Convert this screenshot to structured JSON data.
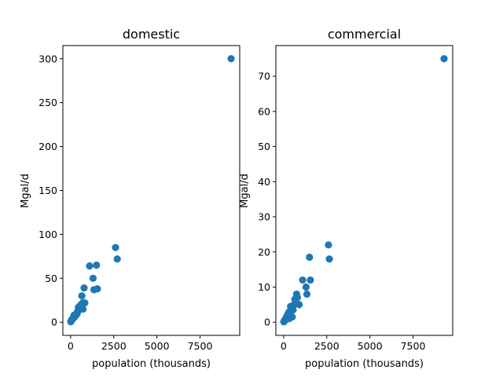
{
  "chart_data": [
    {
      "type": "scatter",
      "title": "domestic",
      "xlabel": "population (thousands)",
      "ylabel": "Mgal/d",
      "xlim": [
        -450,
        9800
      ],
      "ylim": [
        -15,
        315
      ],
      "xticks": [
        0,
        2500,
        5000,
        7500
      ],
      "xtick_labels": [
        "0",
        "2500",
        "5000",
        "7500"
      ],
      "yticks": [
        0,
        50,
        100,
        150,
        200,
        250,
        300
      ],
      "ytick_labels": [
        "0",
        "50",
        "100",
        "150",
        "200",
        "250",
        "300"
      ],
      "grid": false,
      "marker_color": "#1f77b4",
      "series": [
        {
          "x": [
            10,
            20,
            35,
            50,
            60,
            80,
            100,
            120,
            150,
            180,
            200,
            230,
            260,
            300,
            320,
            380,
            400,
            450,
            480,
            520,
            560,
            600,
            650,
            700,
            720,
            780,
            820,
            1100,
            1300,
            1350,
            1500,
            1550,
            2600,
            2700,
            9300
          ],
          "y": [
            0.5,
            1,
            1.5,
            2,
            2.5,
            3,
            3.5,
            4,
            5,
            5,
            8,
            6,
            7,
            9,
            8,
            10,
            12,
            17,
            14,
            18,
            16,
            20,
            30,
            22,
            15,
            39,
            22,
            64,
            50,
            37,
            65,
            38,
            85,
            72,
            300
          ]
        }
      ]
    },
    {
      "type": "scatter",
      "title": "commercial",
      "xlabel": "population (thousands)",
      "ylabel": "Mgal/d",
      "xlim": [
        -450,
        9800
      ],
      "ylim": [
        -3.75,
        78.75
      ],
      "xticks": [
        0,
        2500,
        5000,
        7500
      ],
      "xtick_labels": [
        "0",
        "2500",
        "5000",
        "7500"
      ],
      "yticks": [
        0,
        10,
        20,
        30,
        40,
        50,
        60,
        70
      ],
      "ytick_labels": [
        "0",
        "10",
        "20",
        "30",
        "40",
        "50",
        "60",
        "70"
      ],
      "grid": false,
      "marker_color": "#1f77b4",
      "series": [
        {
          "x": [
            10,
            20,
            35,
            50,
            60,
            80,
            100,
            120,
            150,
            180,
            200,
            230,
            260,
            300,
            320,
            350,
            380,
            400,
            450,
            500,
            550,
            600,
            650,
            700,
            750,
            800,
            900,
            1100,
            1300,
            1350,
            1500,
            1550,
            2600,
            2650,
            9300
          ],
          "y": [
            0.1,
            0.2,
            0.3,
            0.3,
            0.5,
            0.6,
            0.8,
            1,
            1.2,
            1.5,
            1.8,
            2,
            2.5,
            2.8,
            1,
            3,
            3.2,
            4.5,
            4,
            1.5,
            3.5,
            5,
            6.5,
            5.5,
            8,
            7,
            5,
            12,
            10,
            8,
            18.5,
            12,
            22,
            18,
            75
          ]
        }
      ]
    }
  ]
}
